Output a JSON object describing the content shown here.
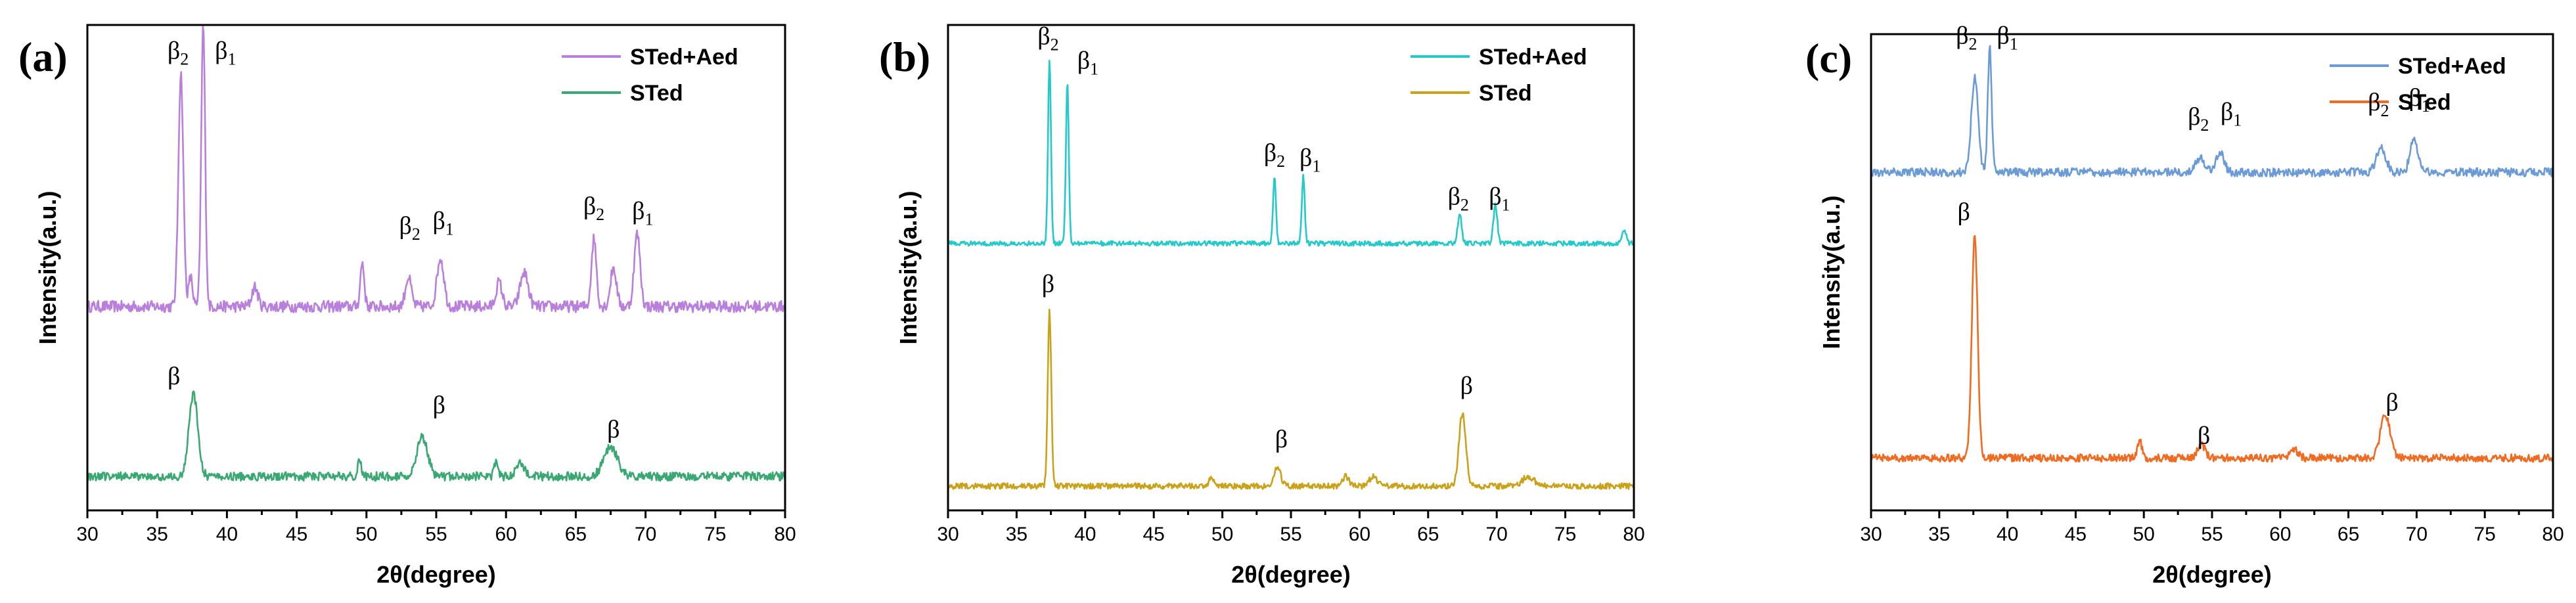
{
  "chart_data": [
    {
      "type": "line",
      "panel_label": "(a)",
      "xlabel": "2θ(degree)",
      "ylabel": "Intensity(a.u.)",
      "xlim": [
        30,
        80
      ],
      "xticks": [
        "30",
        "35",
        "40",
        "45",
        "50",
        "55",
        "60",
        "65",
        "70",
        "75",
        "80"
      ],
      "legend_position": "top-right",
      "series": [
        {
          "name": "STed+Aed",
          "color": "#b97fdc",
          "baseline": 42,
          "noise": 1.2,
          "peaks": [
            [
              36.7,
              48,
              0.25
            ],
            [
              37.4,
              6,
              0.2
            ],
            [
              38.3,
              58,
              0.2
            ],
            [
              42,
              4,
              0.3
            ],
            [
              49.7,
              9,
              0.2
            ],
            [
              53,
              6,
              0.3
            ],
            [
              55.3,
              10,
              0.35
            ],
            [
              59.5,
              5,
              0.3
            ],
            [
              61.3,
              7,
              0.4
            ],
            [
              66.3,
              14,
              0.25
            ],
            [
              67.7,
              8,
              0.3
            ],
            [
              69.4,
              15,
              0.3
            ]
          ]
        },
        {
          "name": "STed",
          "color": "#3aa872",
          "baseline": 7,
          "noise": 0.9,
          "peaks": [
            [
              37.6,
              17,
              0.45
            ],
            [
              49.5,
              3,
              0.2
            ],
            [
              54,
              8,
              0.55
            ],
            [
              59.3,
              3,
              0.2
            ],
            [
              61,
              3,
              0.4
            ],
            [
              67.5,
              6,
              0.7
            ]
          ]
        }
      ],
      "annotations": [
        {
          "text": "β",
          "sub": "2",
          "x": 36.5,
          "y": 93
        },
        {
          "text": "β",
          "sub": "1",
          "x": 39.9,
          "y": 93
        },
        {
          "text": "β",
          "sub": "2",
          "x": 53.1,
          "y": 57
        },
        {
          "text": "β",
          "sub": "1",
          "x": 55.5,
          "y": 58
        },
        {
          "text": "β",
          "sub": "2",
          "x": 66.3,
          "y": 61
        },
        {
          "text": "β",
          "sub": "1",
          "x": 69.8,
          "y": 60
        },
        {
          "text": "β",
          "sub": "",
          "x": 36.2,
          "y": 26
        },
        {
          "text": "β",
          "sub": "",
          "x": 55.2,
          "y": 20
        },
        {
          "text": "β",
          "sub": "",
          "x": 67.7,
          "y": 15
        }
      ]
    },
    {
      "type": "line",
      "panel_label": "(b)",
      "xlabel": "2θ(degree)",
      "ylabel": "Intensity(a.u.)",
      "xlim": [
        30,
        80
      ],
      "xticks": [
        "30",
        "35",
        "40",
        "45",
        "50",
        "55",
        "60",
        "65",
        "70",
        "75",
        "80"
      ],
      "legend_position": "top-right",
      "series": [
        {
          "name": "STed+Aed",
          "color": "#24c9c9",
          "baseline": 55,
          "noise": 0.5,
          "peaks": [
            [
              37.4,
              38,
              0.15
            ],
            [
              38.7,
              33,
              0.15
            ],
            [
              53.8,
              14,
              0.15
            ],
            [
              55.9,
              14,
              0.15
            ],
            [
              67.3,
              6,
              0.2
            ],
            [
              69.9,
              8,
              0.2
            ],
            [
              79.3,
              3,
              0.2
            ]
          ]
        },
        {
          "name": "STed",
          "color": "#c9a21a",
          "baseline": 5,
          "noise": 0.6,
          "peaks": [
            [
              37.4,
              36,
              0.18
            ],
            [
              49.2,
              2,
              0.2
            ],
            [
              54,
              4,
              0.35
            ],
            [
              59,
              2,
              0.3
            ],
            [
              61,
              2,
              0.4
            ],
            [
              67.5,
              15,
              0.35
            ],
            [
              72.3,
              2,
              0.6
            ]
          ]
        }
      ],
      "annotations": [
        {
          "text": "β",
          "sub": "2",
          "x": 37.3,
          "y": 96
        },
        {
          "text": "β",
          "sub": "1",
          "x": 40.2,
          "y": 91
        },
        {
          "text": "β",
          "sub": "2",
          "x": 53.8,
          "y": 72
        },
        {
          "text": "β",
          "sub": "1",
          "x": 56.4,
          "y": 71
        },
        {
          "text": "β",
          "sub": "2",
          "x": 67.2,
          "y": 63
        },
        {
          "text": "β",
          "sub": "1",
          "x": 70.2,
          "y": 63
        },
        {
          "text": "β",
          "sub": "",
          "x": 37.3,
          "y": 45
        },
        {
          "text": "β",
          "sub": "",
          "x": 54.3,
          "y": 13
        },
        {
          "text": "β",
          "sub": "",
          "x": 67.8,
          "y": 24
        }
      ]
    },
    {
      "type": "line",
      "panel_label": "(c)",
      "xlabel": "2θ(degree)",
      "ylabel": "Intensity(a.u.)",
      "xlim": [
        30,
        80
      ],
      "xticks": [
        "30",
        "35",
        "40",
        "45",
        "50",
        "55",
        "60",
        "65",
        "70",
        "75",
        "80"
      ],
      "legend_position": "top-right",
      "series": [
        {
          "name": "STed+Aed",
          "color": "#6b9bd6",
          "baseline": 71,
          "noise": 0.9,
          "peaks": [
            [
              37.6,
              20,
              0.35
            ],
            [
              38.7,
              26,
              0.2
            ],
            [
              54.1,
              3,
              0.5
            ],
            [
              55.6,
              4,
              0.4
            ],
            [
              67.4,
              5,
              0.5
            ],
            [
              69.8,
              7,
              0.4
            ]
          ]
        },
        {
          "name": "STed",
          "color": "#f06a20",
          "baseline": 11,
          "noise": 0.8,
          "peaks": [
            [
              37.6,
              47,
              0.3
            ],
            [
              49.7,
              4,
              0.2
            ],
            [
              54.2,
              3,
              0.4
            ],
            [
              61,
              2,
              0.4
            ],
            [
              67.7,
              9,
              0.5
            ]
          ]
        }
      ],
      "annotations": [
        {
          "text": "β",
          "sub": "2",
          "x": 37.0,
          "y": 98
        },
        {
          "text": "β",
          "sub": "1",
          "x": 40.0,
          "y": 98
        },
        {
          "text": "β",
          "sub": "2",
          "x": 54.0,
          "y": 81
        },
        {
          "text": "β",
          "sub": "1",
          "x": 56.4,
          "y": 82
        },
        {
          "text": "β",
          "sub": "2",
          "x": 67.2,
          "y": 84
        },
        {
          "text": "β",
          "sub": "1",
          "x": 70.2,
          "y": 85
        },
        {
          "text": "β",
          "sub": "",
          "x": 36.8,
          "y": 61
        },
        {
          "text": "β",
          "sub": "",
          "x": 54.4,
          "y": 14
        },
        {
          "text": "β",
          "sub": "",
          "x": 68.2,
          "y": 21
        }
      ]
    }
  ]
}
